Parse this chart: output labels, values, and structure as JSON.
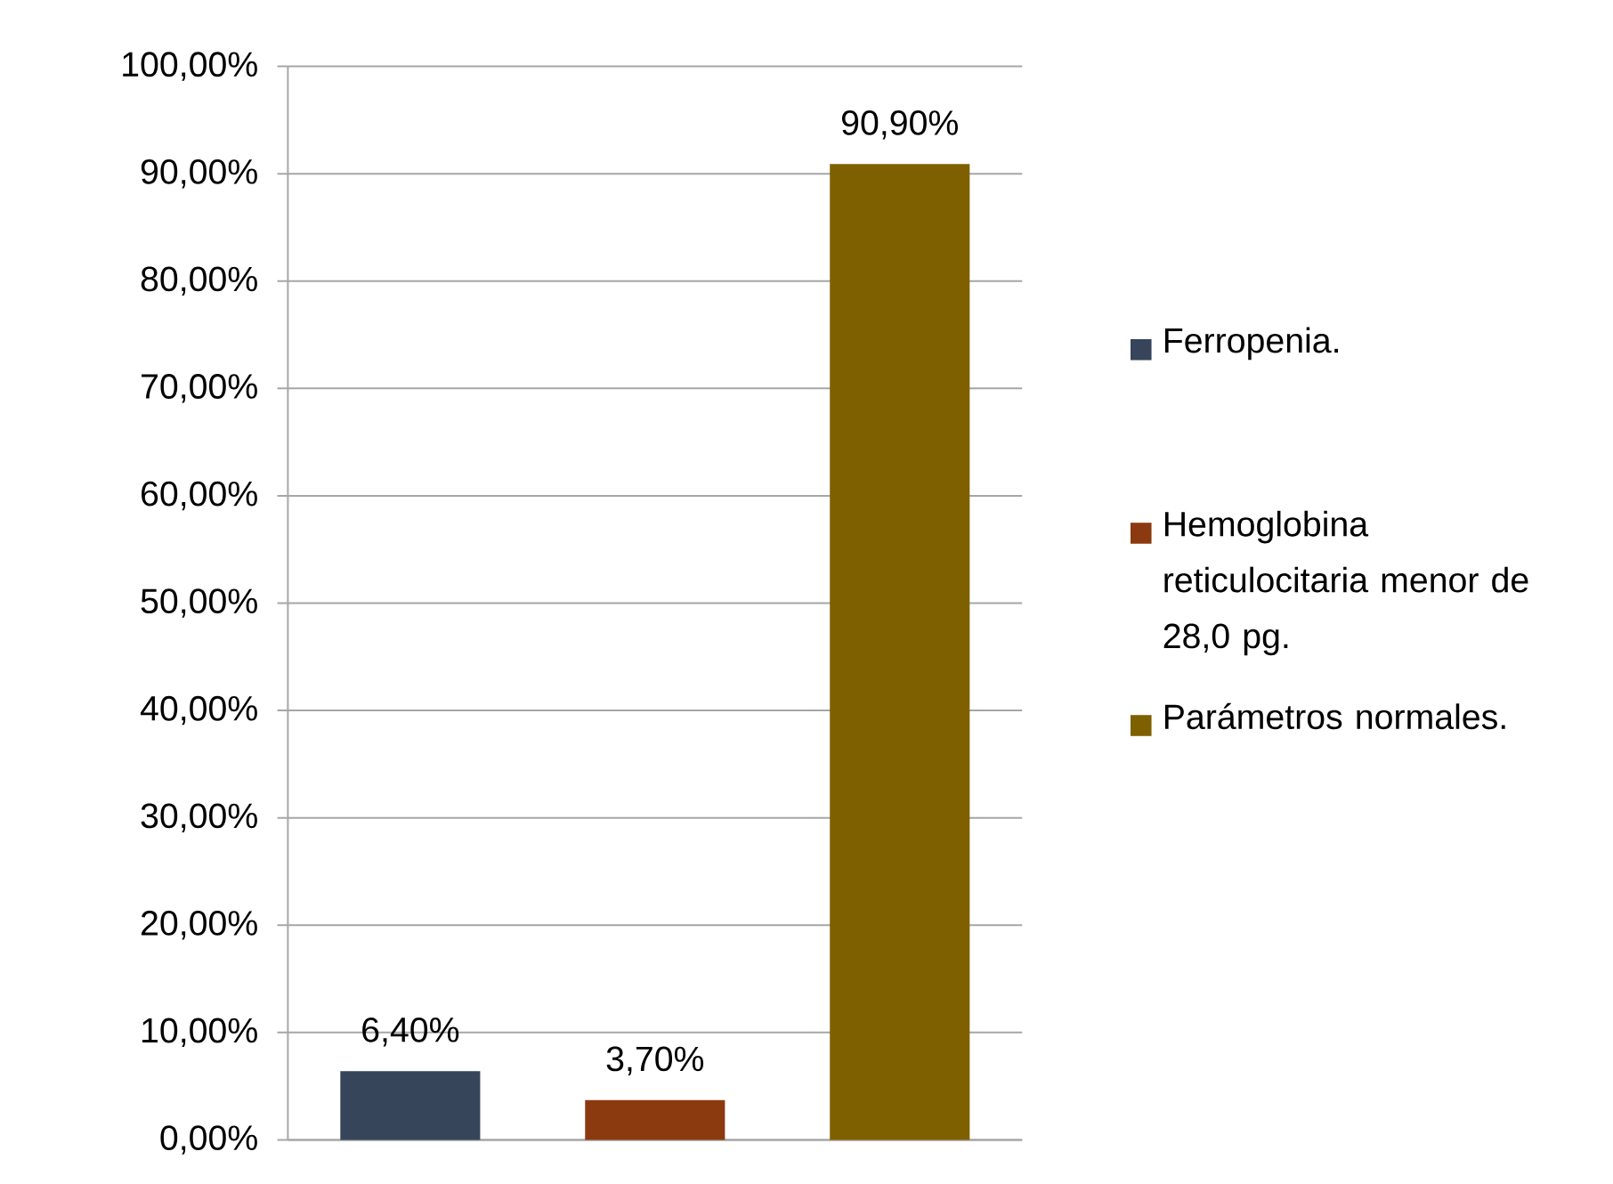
{
  "chart_data": {
    "type": "bar",
    "categories": [
      null,
      null,
      null
    ],
    "series": [
      {
        "name": "Ferropenia.",
        "color": "#364559",
        "values": [
          6.4,
          null,
          null
        ],
        "value_labels": [
          "6,40%",
          null,
          null
        ]
      },
      {
        "name": "Hemoglobina reticulocitaria menor de 28,0 pg.",
        "color": "#8b3a0f",
        "values": [
          null,
          3.7,
          null
        ],
        "value_labels": [
          null,
          "3,70%",
          null
        ]
      },
      {
        "name": "Parámetros normales.",
        "color": "#7f6000",
        "values": [
          null,
          null,
          90.9
        ],
        "value_labels": [
          null,
          null,
          "90,90%"
        ]
      }
    ],
    "ylim": [
      0,
      100
    ],
    "yticks": [
      {
        "value": 0,
        "label": "0,00%"
      },
      {
        "value": 10,
        "label": "10,00%"
      },
      {
        "value": 20,
        "label": "20,00%"
      },
      {
        "value": 30,
        "label": "30,00%"
      },
      {
        "value": 40,
        "label": "40,00%"
      },
      {
        "value": 50,
        "label": "50,00%"
      },
      {
        "value": 60,
        "label": "60,00%"
      },
      {
        "value": 70,
        "label": "70,00%"
      },
      {
        "value": 80,
        "label": "80,00%"
      },
      {
        "value": 90,
        "label": "90,00%"
      },
      {
        "value": 100,
        "label": "100,00%"
      }
    ],
    "grid": "y",
    "legend": "right"
  }
}
